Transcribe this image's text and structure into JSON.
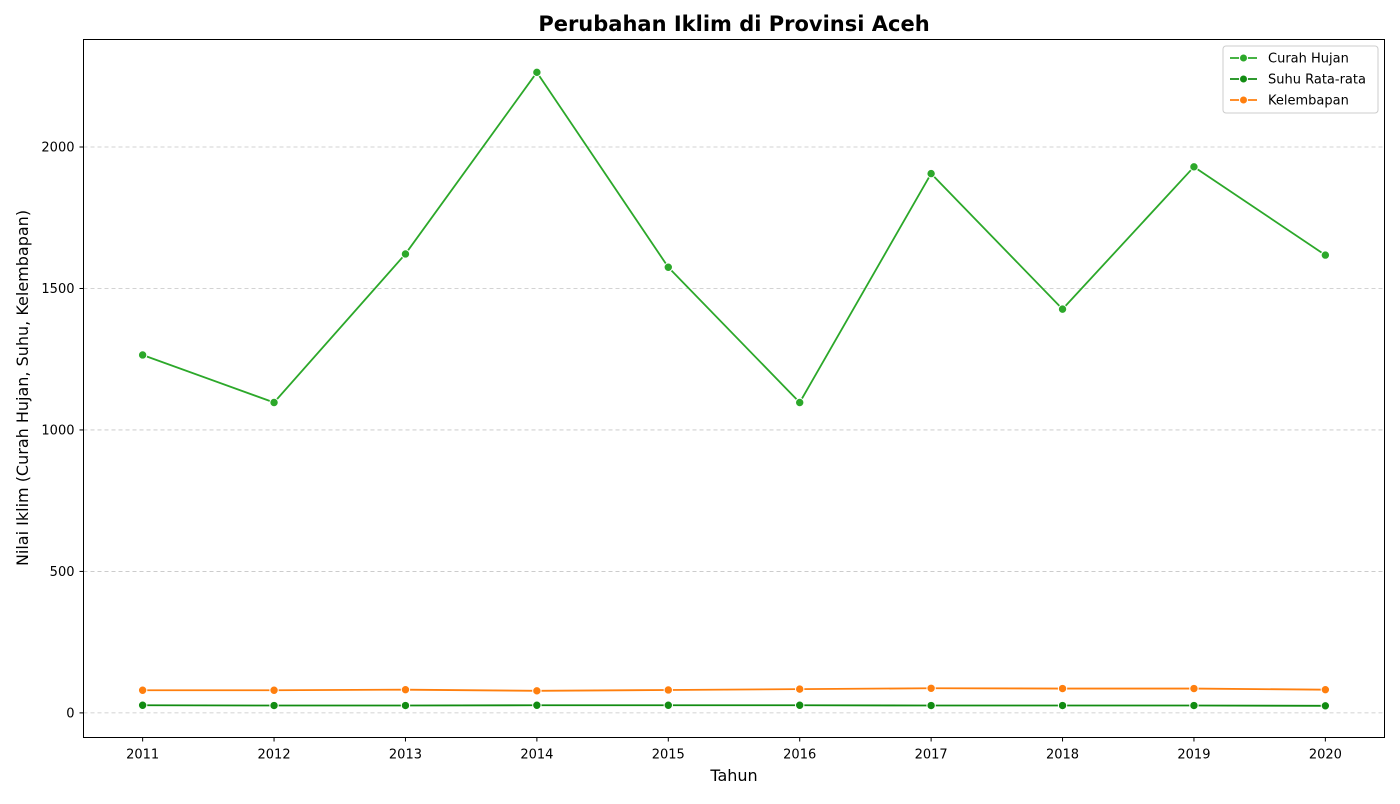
{
  "chart_data": {
    "type": "line",
    "title": "Perubahan Iklim di Provinsi Aceh",
    "xlabel": "Tahun",
    "ylabel": "Nilai Iklim (Curah Hujan, Suhu, Kelembapan)",
    "x": [
      2011,
      2012,
      2013,
      2014,
      2015,
      2016,
      2017,
      2018,
      2019,
      2020
    ],
    "x_tick_labels": [
      "2011",
      "2012",
      "2013",
      "2014",
      "2015",
      "2016",
      "2017",
      "2018",
      "2019",
      "2020"
    ],
    "y_ticks": [
      0,
      500,
      1000,
      1500,
      2000
    ],
    "y_tick_labels": [
      "0",
      "500",
      "1000",
      "1500",
      "2000"
    ],
    "ylim": [
      -87,
      2380
    ],
    "xlim": [
      2010.55,
      2020.45
    ],
    "grid": "horizontal-dashed",
    "legend_position": "top-right",
    "series": [
      {
        "name": "Curah Hujan",
        "color": "#2ca82a",
        "values": [
          1265,
          1097,
          1622,
          2264,
          1575,
          1097,
          1906,
          1427,
          1930,
          1618
        ]
      },
      {
        "name": "Suhu Rata-rata",
        "color": "#128c12",
        "values": [
          27,
          26,
          26,
          27,
          27,
          27,
          26,
          26,
          26,
          25
        ]
      },
      {
        "name": "Kelembapan",
        "color": "#ff7f0e",
        "values": [
          80,
          80,
          82,
          78,
          81,
          84,
          87,
          86,
          86,
          82
        ]
      }
    ]
  }
}
